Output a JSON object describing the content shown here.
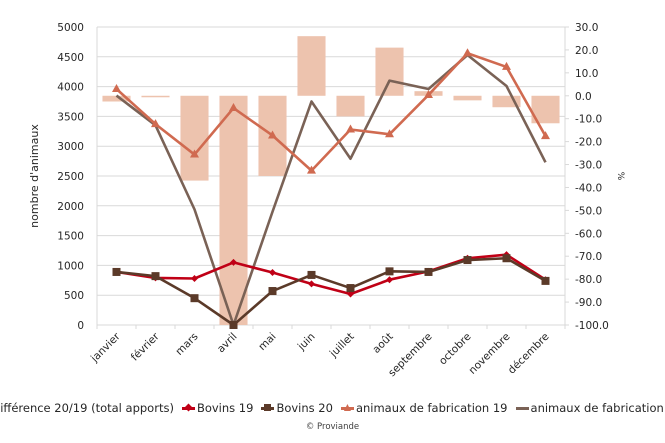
{
  "chart_data": {
    "type": "bar+line",
    "title": "",
    "categories": [
      "janvier",
      "février",
      "mars",
      "avril",
      "mai",
      "juin",
      "juillet",
      "août",
      "septembre",
      "octobre",
      "novembre",
      "décembre"
    ],
    "ylabel": "nombre d'animaux",
    "y2label": "%",
    "ylim": [
      0,
      5000
    ],
    "yticks": [
      0,
      500,
      1000,
      1500,
      2000,
      2500,
      3000,
      3500,
      4000,
      4500,
      5000
    ],
    "y2lim": [
      -100,
      30
    ],
    "y2ticks": [
      "30.0",
      "20.0",
      "10.0",
      "0.0",
      "-10.0",
      "-20.0",
      "-30.0",
      "-40.0",
      "-50.0",
      "-60.0",
      "-70.0",
      "-80.0",
      "-90.0",
      "-100.0"
    ],
    "grid": true,
    "legend_position": "bottom",
    "series": [
      {
        "name": "différence 20/19 (total apports)",
        "kind": "bar",
        "axis": "right",
        "color": "#EDC3AE",
        "values": [
          -2.5,
          -0.5,
          -37,
          -100,
          -35,
          26,
          -9,
          21,
          2,
          -2,
          -5,
          -12
        ]
      },
      {
        "name": "Bovins 19",
        "kind": "line",
        "marker": "diamond",
        "axis": "left",
        "color": "#C00016",
        "values": [
          890,
          790,
          780,
          1050,
          880,
          690,
          520,
          760,
          900,
          1120,
          1180,
          760
        ]
      },
      {
        "name": "Bovins 20",
        "kind": "line",
        "marker": "square",
        "axis": "left",
        "color": "#5B3A29",
        "values": [
          890,
          820,
          450,
          0,
          570,
          840,
          620,
          900,
          890,
          1090,
          1120,
          740
        ]
      },
      {
        "name": "animaux de fabrication 19",
        "kind": "line",
        "marker": "triangle",
        "axis": "left",
        "color": "#D06A50",
        "values": [
          3960,
          3370,
          2860,
          3640,
          3180,
          2590,
          3280,
          3200,
          3860,
          4560,
          4330,
          3170
        ]
      },
      {
        "name": "animaux de fabrication 20",
        "kind": "line",
        "marker": "none",
        "axis": "left",
        "color": "#7A6256",
        "values": [
          3850,
          3350,
          1940,
          0,
          1900,
          3750,
          2790,
          4100,
          3960,
          4530,
          4010,
          2730
        ]
      }
    ]
  },
  "copyright": "© Proviande"
}
